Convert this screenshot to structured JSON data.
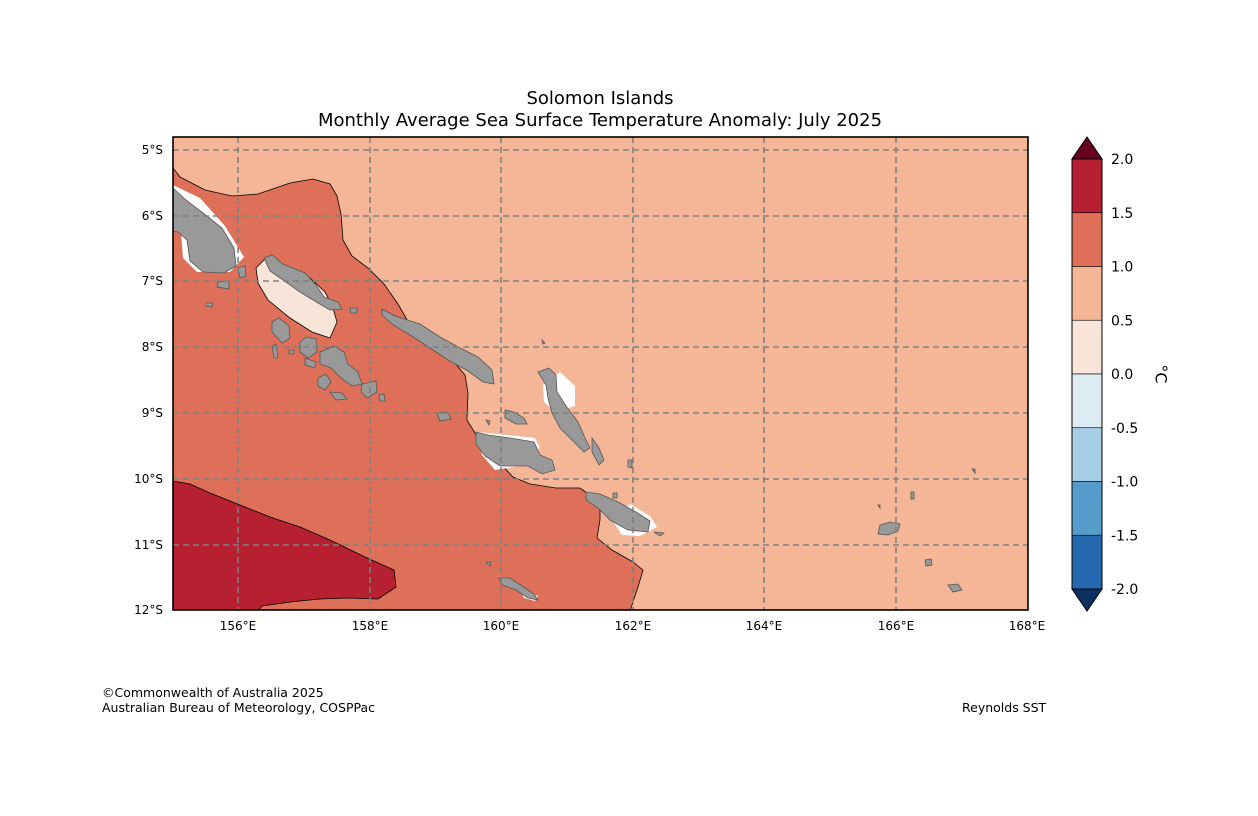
{
  "title": {
    "line1": "Solomon Islands",
    "line2": "Monthly Average Sea Surface Temperature Anomaly: July 2025"
  },
  "map": {
    "region": "Solomon Islands",
    "lon_range": [
      155,
      168
    ],
    "lat_range": [
      -12,
      -4.8
    ],
    "lon_ticks": [
      "156°E",
      "158°E",
      "160°E",
      "162°E",
      "164°E",
      "166°E",
      "168°E"
    ],
    "lat_ticks": [
      "5°S",
      "6°S",
      "7°S",
      "8°S",
      "9°S",
      "10°S",
      "11°S",
      "12°S"
    ],
    "gridlines": true,
    "land_color": "#999999",
    "anomaly_classes": [
      {
        "range": "1.5 to 2.0",
        "color": "#b72031"
      },
      {
        "range": "1.0 to 1.5",
        "color": "#de705a"
      },
      {
        "range": "0.5 to 1.0",
        "color": "#f5b697"
      },
      {
        "range": "0.0 to 0.5",
        "color": "#f8e4d9"
      }
    ]
  },
  "colorbar": {
    "unit": "°C",
    "ticks": [
      "2.0",
      "1.5",
      "1.0",
      "0.5",
      "0.0",
      "-0.5",
      "-1.0",
      "-1.5",
      "-2.0"
    ],
    "colors": [
      "#b72031",
      "#de705a",
      "#f5b697",
      "#f8e4d9",
      "#dfebf3",
      "#a5cde3",
      "#559ccb",
      "#2469b0"
    ],
    "over_color": "#67001f",
    "under_color": "#0b3061",
    "extend": "both"
  },
  "credits": {
    "line1": "©Commonwealth of Australia 2025",
    "line2": "Australian Bureau of Meteorology, COSPPac",
    "source": "Reynolds SST"
  }
}
